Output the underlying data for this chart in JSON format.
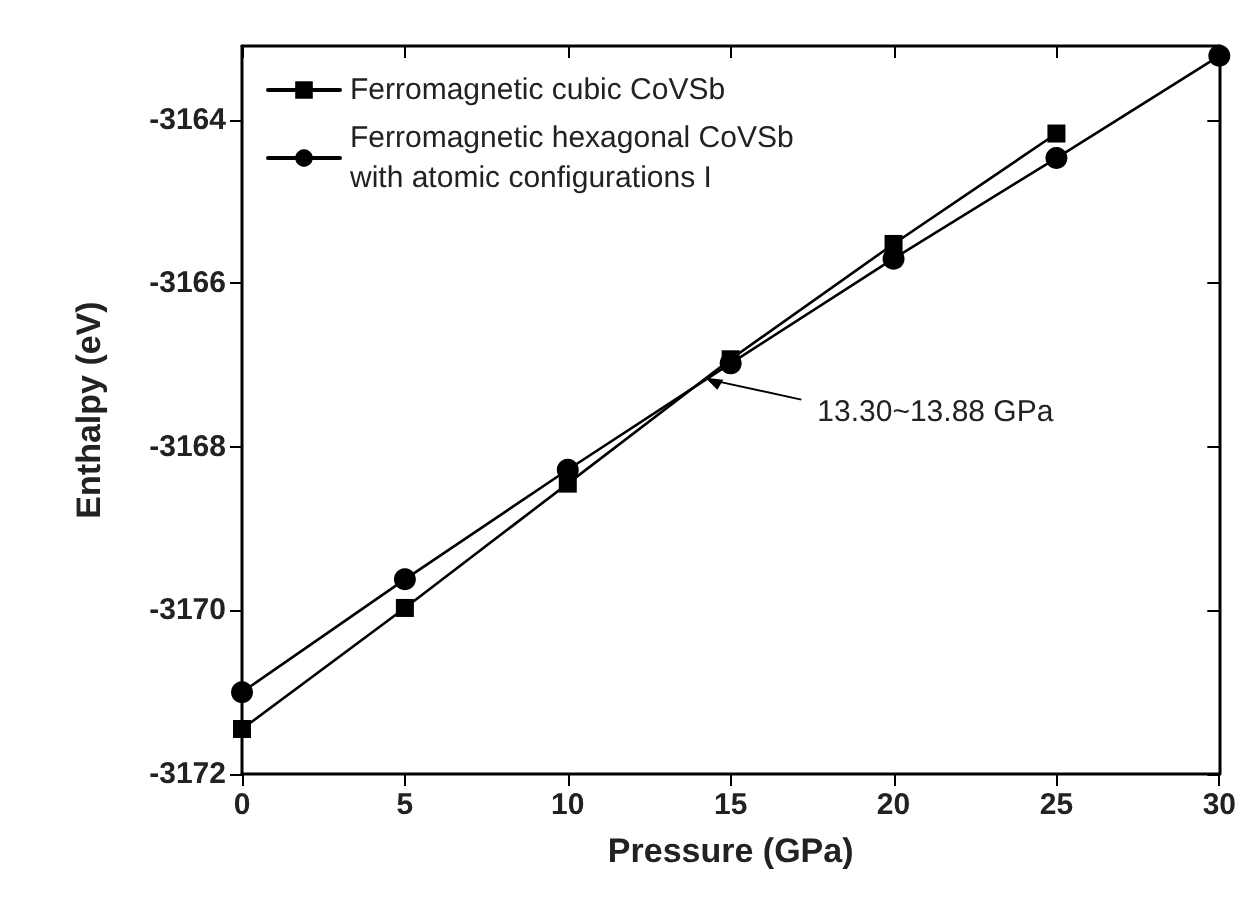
{
  "chart_data": {
    "type": "line",
    "xlabel": "Pressure (GPa)",
    "ylabel": "Enthalpy (eV)",
    "x": [
      0,
      5,
      10,
      15,
      20,
      25,
      30
    ],
    "series": [
      {
        "name": "Ferromagnetic cubic CoVSb",
        "color": "#000000",
        "marker": "square",
        "values": [
          -3171.45,
          -3169.97,
          -3168.45,
          -3166.93,
          -3165.52,
          -3164.17,
          null
        ]
      },
      {
        "name": "Ferromagnetic hexagonal CoVSb\nwith atomic configurations I",
        "color": "#000000",
        "marker": "circle",
        "values": [
          -3171.0,
          -3169.62,
          -3168.28,
          -3166.98,
          -3165.7,
          -3164.47,
          -3163.22
        ]
      }
    ],
    "xlim": [
      0,
      30
    ],
    "xticks": [
      0,
      5,
      10,
      15,
      20,
      25,
      30
    ],
    "ylim": [
      -3172,
      -3163.1
    ],
    "yticks": [
      -3172,
      -3170,
      -3168,
      -3166,
      -3164
    ],
    "grid": false,
    "legend": "top left",
    "line_style": "solid",
    "annotations": [
      {
        "text": "13.30~13.88 GPa",
        "x": 14.1,
        "y": -3167.13
      }
    ]
  }
}
